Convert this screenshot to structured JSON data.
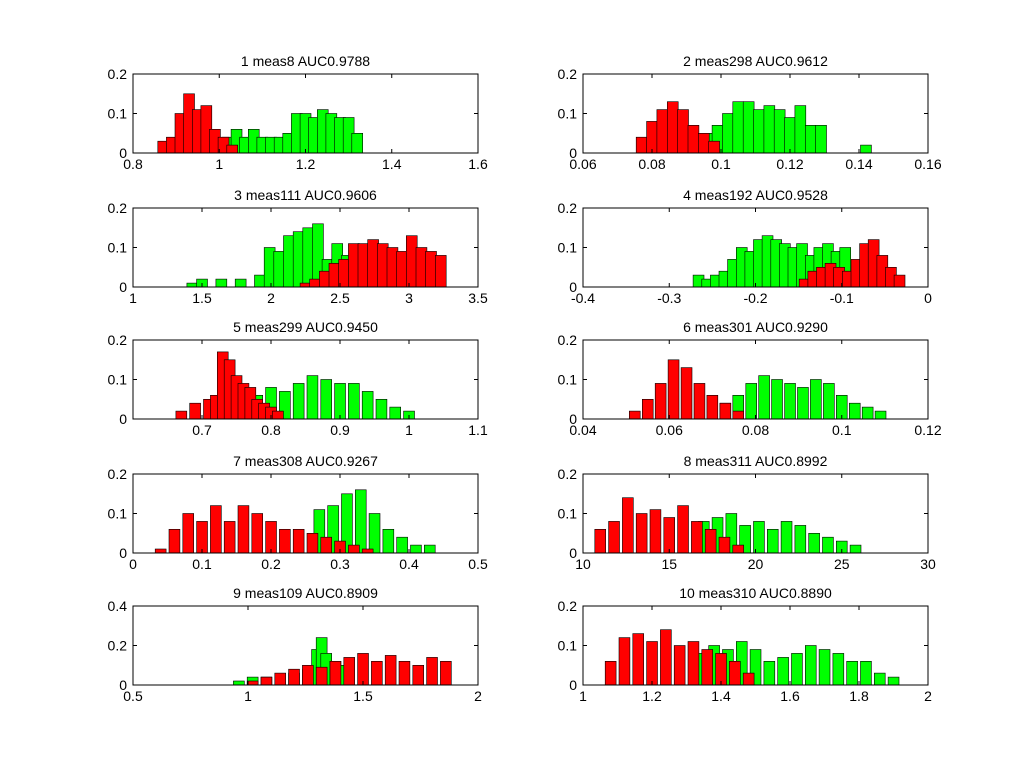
{
  "chart_data": [
    {
      "type": "bar",
      "title": "1 meas8 AUC0.9788",
      "xlim": [
        0.8,
        1.6
      ],
      "ylim": [
        0,
        0.2
      ],
      "xticks": [
        "0.8",
        "1",
        "1.2",
        "1.4",
        "1.6"
      ],
      "yticks": [
        "0",
        "0.1",
        "0.2"
      ],
      "series": [
        {
          "color": "#00ff00",
          "x": [
            0.98,
            1.0,
            1.02,
            1.04,
            1.06,
            1.08,
            1.1,
            1.12,
            1.14,
            1.16,
            1.18,
            1.2,
            1.22,
            1.24,
            1.26,
            1.28,
            1.3,
            1.32
          ],
          "values": [
            0.02,
            0.03,
            0.04,
            0.06,
            0.04,
            0.06,
            0.04,
            0.04,
            0.04,
            0.05,
            0.1,
            0.1,
            0.09,
            0.11,
            0.1,
            0.09,
            0.09,
            0.05
          ]
        },
        {
          "color": "#ff0000",
          "x": [
            0.87,
            0.89,
            0.91,
            0.93,
            0.95,
            0.97,
            0.99,
            1.01,
            1.03
          ],
          "values": [
            0.03,
            0.04,
            0.1,
            0.15,
            0.11,
            0.12,
            0.06,
            0.04,
            0.02
          ]
        }
      ]
    },
    {
      "type": "bar",
      "title": "2 meas298 AUC0.9612",
      "xlim": [
        0.06,
        0.16
      ],
      "ylim": [
        0,
        0.2
      ],
      "xticks": [
        "0.06",
        "0.08",
        "0.1",
        "0.12",
        "0.14",
        "0.16"
      ],
      "yticks": [
        "0",
        "0.1",
        "0.2"
      ],
      "series": [
        {
          "color": "#00ff00",
          "x": [
            0.093,
            0.096,
            0.099,
            0.102,
            0.105,
            0.108,
            0.111,
            0.114,
            0.117,
            0.12,
            0.123,
            0.126,
            0.129,
            0.142
          ],
          "values": [
            0.03,
            0.05,
            0.07,
            0.1,
            0.13,
            0.13,
            0.11,
            0.12,
            0.11,
            0.09,
            0.12,
            0.07,
            0.07,
            0.02
          ]
        },
        {
          "color": "#ff0000",
          "x": [
            0.077,
            0.08,
            0.083,
            0.086,
            0.089,
            0.092,
            0.095,
            0.098
          ],
          "values": [
            0.04,
            0.08,
            0.11,
            0.13,
            0.11,
            0.07,
            0.05,
            0.03
          ]
        }
      ]
    },
    {
      "type": "bar",
      "title": "3 meas111 AUC0.9606",
      "xlim": [
        1,
        3.5
      ],
      "ylim": [
        0,
        0.2
      ],
      "xticks": [
        "1",
        "1.5",
        "2",
        "2.5",
        "3",
        "3.5"
      ],
      "yticks": [
        "0",
        "0.1",
        "0.2"
      ],
      "series": [
        {
          "color": "#00ff00",
          "x": [
            1.43,
            1.5,
            1.64,
            1.78,
            1.92,
            1.99,
            2.06,
            2.13,
            2.2,
            2.27,
            2.34,
            2.41,
            2.48,
            2.55
          ],
          "values": [
            0.01,
            0.02,
            0.02,
            0.02,
            0.03,
            0.1,
            0.09,
            0.13,
            0.14,
            0.15,
            0.16,
            0.07,
            0.11,
            0.08
          ]
        },
        {
          "color": "#ff0000",
          "x": [
            2.25,
            2.32,
            2.39,
            2.46,
            2.53,
            2.6,
            2.67,
            2.74,
            2.81,
            2.88,
            2.95,
            3.02,
            3.09,
            3.16,
            3.23
          ],
          "values": [
            0.01,
            0.02,
            0.04,
            0.06,
            0.07,
            0.11,
            0.11,
            0.12,
            0.11,
            0.1,
            0.09,
            0.13,
            0.1,
            0.09,
            0.08
          ]
        }
      ]
    },
    {
      "type": "bar",
      "title": "4 meas192 AUC0.9528",
      "xlim": [
        -0.4,
        0
      ],
      "ylim": [
        0,
        0.2
      ],
      "xticks": [
        "-0.4",
        "-0.3",
        "-0.2",
        "-0.1",
        "0"
      ],
      "yticks": [
        "0",
        "0.1",
        "0.2"
      ],
      "series": [
        {
          "color": "#00ff00",
          "x": [
            -0.266,
            -0.256,
            -0.246,
            -0.236,
            -0.226,
            -0.216,
            -0.206,
            -0.196,
            -0.186,
            -0.176,
            -0.166,
            -0.156,
            -0.146,
            -0.136,
            -0.126,
            -0.116,
            -0.106,
            -0.096
          ],
          "values": [
            0.03,
            0.02,
            0.03,
            0.04,
            0.07,
            0.1,
            0.09,
            0.12,
            0.13,
            0.12,
            0.11,
            0.1,
            0.11,
            0.08,
            0.1,
            0.11,
            0.09,
            0.1
          ]
        },
        {
          "color": "#ff0000",
          "x": [
            -0.143,
            -0.133,
            -0.123,
            -0.113,
            -0.103,
            -0.093,
            -0.083,
            -0.073,
            -0.063,
            -0.053,
            -0.043,
            -0.033
          ],
          "values": [
            0.02,
            0.04,
            0.05,
            0.06,
            0.05,
            0.04,
            0.07,
            0.11,
            0.12,
            0.08,
            0.05,
            0.03
          ]
        }
      ]
    },
    {
      "type": "bar",
      "title": "5 meas299 AUC0.9450",
      "xlim": [
        0.6,
        1.1
      ],
      "ylim": [
        0,
        0.2
      ],
      "xticks": [
        "0.7",
        "0.8",
        "0.9",
        "1",
        "1.1"
      ],
      "yticks": [
        "0",
        "0.1",
        "0.2"
      ],
      "series": [
        {
          "color": "#00ff00",
          "x": [
            0.76,
            0.78,
            0.8,
            0.82,
            0.84,
            0.86,
            0.88,
            0.9,
            0.92,
            0.94,
            0.96,
            0.98,
            1.0
          ],
          "values": [
            0.04,
            0.06,
            0.08,
            0.07,
            0.09,
            0.11,
            0.1,
            0.09,
            0.09,
            0.07,
            0.05,
            0.03,
            0.02
          ]
        },
        {
          "color": "#ff0000",
          "x": [
            0.67,
            0.69,
            0.71,
            0.72,
            0.73,
            0.74,
            0.75,
            0.76,
            0.77,
            0.78,
            0.79,
            0.8,
            0.81
          ],
          "values": [
            0.02,
            0.04,
            0.05,
            0.06,
            0.17,
            0.15,
            0.11,
            0.09,
            0.08,
            0.05,
            0.04,
            0.03,
            0.02
          ]
        }
      ]
    },
    {
      "type": "bar",
      "title": "6 meas301 AUC0.9290",
      "xlim": [
        0.04,
        0.12
      ],
      "ylim": [
        0,
        0.2
      ],
      "xticks": [
        "0.04",
        "0.06",
        "0.08",
        "0.1",
        "0.12"
      ],
      "yticks": [
        "0",
        "0.1",
        "0.2"
      ],
      "series": [
        {
          "color": "#00ff00",
          "x": [
            0.073,
            0.076,
            0.079,
            0.082,
            0.085,
            0.088,
            0.091,
            0.094,
            0.097,
            0.1,
            0.103,
            0.106,
            0.109
          ],
          "values": [
            0.04,
            0.06,
            0.09,
            0.11,
            0.1,
            0.09,
            0.08,
            0.1,
            0.09,
            0.06,
            0.04,
            0.03,
            0.02
          ]
        },
        {
          "color": "#ff0000",
          "x": [
            0.052,
            0.055,
            0.058,
            0.061,
            0.064,
            0.067,
            0.07,
            0.073,
            0.076
          ],
          "values": [
            0.02,
            0.05,
            0.09,
            0.15,
            0.13,
            0.09,
            0.06,
            0.04,
            0.02
          ]
        }
      ]
    },
    {
      "type": "bar",
      "title": "7 meas308 AUC0.9267",
      "xlim": [
        0,
        0.5
      ],
      "ylim": [
        0,
        0.2
      ],
      "xticks": [
        "0",
        "0.1",
        "0.2",
        "0.3",
        "0.4",
        "0.5"
      ],
      "yticks": [
        "0",
        "0.1",
        "0.2"
      ],
      "series": [
        {
          "color": "#00ff00",
          "x": [
            0.27,
            0.29,
            0.31,
            0.33,
            0.35,
            0.37,
            0.39,
            0.41,
            0.43
          ],
          "values": [
            0.11,
            0.12,
            0.15,
            0.16,
            0.1,
            0.06,
            0.04,
            0.02,
            0.02
          ]
        },
        {
          "color": "#ff0000",
          "x": [
            0.04,
            0.06,
            0.08,
            0.1,
            0.12,
            0.14,
            0.16,
            0.18,
            0.2,
            0.22,
            0.24,
            0.26,
            0.28,
            0.3,
            0.32,
            0.34
          ],
          "values": [
            0.01,
            0.06,
            0.1,
            0.08,
            0.12,
            0.08,
            0.12,
            0.1,
            0.08,
            0.06,
            0.06,
            0.05,
            0.04,
            0.03,
            0.02,
            0.01
          ]
        }
      ]
    },
    {
      "type": "bar",
      "title": "8 meas311 AUC0.8992",
      "xlim": [
        10,
        30
      ],
      "ylim": [
        0,
        0.2
      ],
      "xticks": [
        "10",
        "15",
        "20",
        "25",
        "30"
      ],
      "yticks": [
        "0",
        "0.1",
        "0.2"
      ],
      "series": [
        {
          "color": "#00ff00",
          "x": [
            17.0,
            17.8,
            18.6,
            19.4,
            20.2,
            21.0,
            21.8,
            22.6,
            23.4,
            24.2,
            25.0,
            25.8
          ],
          "values": [
            0.08,
            0.09,
            0.1,
            0.07,
            0.08,
            0.06,
            0.08,
            0.07,
            0.05,
            0.04,
            0.03,
            0.02
          ]
        },
        {
          "color": "#ff0000",
          "x": [
            11.0,
            11.8,
            12.6,
            13.4,
            14.2,
            15.0,
            15.8,
            16.6,
            17.4,
            18.2,
            19.0
          ],
          "values": [
            0.06,
            0.08,
            0.14,
            0.1,
            0.11,
            0.09,
            0.12,
            0.08,
            0.06,
            0.04,
            0.02
          ]
        }
      ]
    },
    {
      "type": "bar",
      "title": "9 meas109 AUC0.8909",
      "xlim": [
        0.5,
        2
      ],
      "ylim": [
        0,
        0.4
      ],
      "xticks": [
        "0.5",
        "1",
        "1.5",
        "2"
      ],
      "yticks": [
        "0",
        "0.2",
        "0.4"
      ],
      "series": [
        {
          "color": "#00ff00",
          "x": [
            0.96,
            1.02,
            1.08,
            1.14,
            1.2,
            1.26,
            1.3,
            1.32,
            1.34,
            1.38,
            1.42
          ],
          "values": [
            0.02,
            0.04,
            0.04,
            0.05,
            0.06,
            0.08,
            0.18,
            0.24,
            0.16,
            0.12,
            0.1
          ]
        },
        {
          "color": "#ff0000",
          "x": [
            1.02,
            1.08,
            1.14,
            1.2,
            1.26,
            1.32,
            1.38,
            1.44,
            1.5,
            1.56,
            1.62,
            1.68,
            1.74,
            1.8,
            1.86
          ],
          "values": [
            0.02,
            0.04,
            0.06,
            0.08,
            0.1,
            0.09,
            0.12,
            0.14,
            0.16,
            0.12,
            0.15,
            0.12,
            0.1,
            0.14,
            0.12
          ]
        }
      ]
    },
    {
      "type": "bar",
      "title": "10 meas310 AUC0.8890",
      "xlim": [
        1,
        2
      ],
      "ylim": [
        0,
        0.2
      ],
      "xticks": [
        "1",
        "1.2",
        "1.4",
        "1.6",
        "1.8",
        "2"
      ],
      "yticks": [
        "0",
        "0.1",
        "0.2"
      ],
      "series": [
        {
          "color": "#00ff00",
          "x": [
            1.34,
            1.38,
            1.42,
            1.46,
            1.5,
            1.54,
            1.58,
            1.62,
            1.66,
            1.7,
            1.74,
            1.78,
            1.82,
            1.86,
            1.9
          ],
          "values": [
            0.08,
            0.1,
            0.09,
            0.11,
            0.09,
            0.06,
            0.07,
            0.08,
            0.1,
            0.09,
            0.08,
            0.06,
            0.06,
            0.03,
            0.02
          ]
        },
        {
          "color": "#ff0000",
          "x": [
            1.08,
            1.12,
            1.16,
            1.2,
            1.24,
            1.28,
            1.32,
            1.36,
            1.4,
            1.44,
            1.48
          ],
          "values": [
            0.06,
            0.12,
            0.13,
            0.11,
            0.14,
            0.1,
            0.11,
            0.09,
            0.08,
            0.06,
            0.03
          ]
        }
      ]
    }
  ]
}
